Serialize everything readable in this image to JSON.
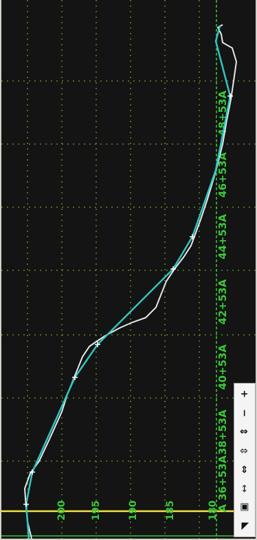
{
  "profile_view": {
    "station_labels": [
      "A 36+53A",
      "38+53A",
      "40+53A",
      "42+53A",
      "44+53A",
      "46+53A",
      "48+53A"
    ],
    "elevation_labels": [
      "200",
      "195",
      "190",
      "185",
      "180"
    ],
    "colors": {
      "background": "#141414",
      "grid": "#7fbf3a",
      "labels": "#39c93a",
      "design_profile": "#2fc7c0",
      "ground_profile": "#e8e8e8",
      "cursor_line": "#f0e640",
      "marker_line": "#39c93a"
    }
  },
  "toolbar": {
    "items": [
      {
        "name": "zoom-in-icon",
        "glyph": "+"
      },
      {
        "name": "zoom-out-icon",
        "glyph": "−"
      },
      {
        "name": "vertical-stretch-icon",
        "glyph": "⇕"
      },
      {
        "name": "vertical-shrink-icon",
        "glyph": "⇳"
      },
      {
        "name": "horizontal-stretch-icon",
        "glyph": "⇔"
      },
      {
        "name": "horizontal-shrink-icon",
        "glyph": "⇿"
      },
      {
        "name": "fit-window-icon",
        "glyph": "▣"
      },
      {
        "name": "pan-corner-icon",
        "glyph": "◥"
      }
    ]
  }
}
